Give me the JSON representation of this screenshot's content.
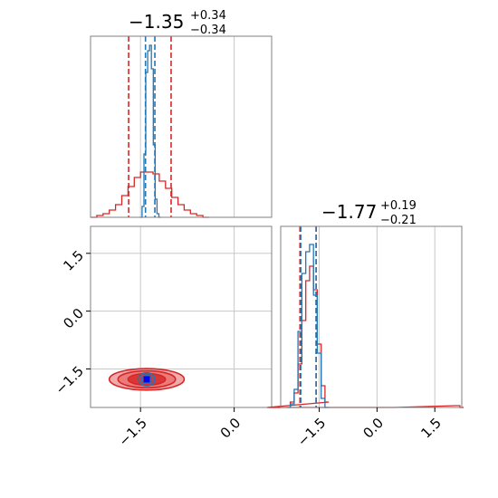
{
  "chart_data": {
    "type": "corner",
    "colors": {
      "red": "#d62728",
      "blue": "#1f77b4",
      "marker": "#0000ff",
      "grid": "#c8c8c8"
    },
    "panels": {
      "hist_x": {
        "title": {
          "main": "−1.35",
          "sup": "+0.34",
          "sub": "−0.34"
        },
        "xlim": [
          -2.3,
          0.6
        ],
        "red_quantiles": [
          -1.69,
          -1.01
        ],
        "blue_quantiles": [
          -1.42,
          -1.27
        ],
        "red_hist": {
          "x": [
            -2.25,
            -2.15,
            -2.05,
            -1.95,
            -1.85,
            -1.75,
            -1.65,
            -1.55,
            -1.45,
            -1.35,
            -1.25,
            -1.15,
            -1.05,
            -0.95,
            -0.85,
            -0.75,
            -0.65,
            -0.55,
            -0.45
          ],
          "y": [
            0,
            0.01,
            0.02,
            0.04,
            0.07,
            0.12,
            0.17,
            0.22,
            0.25,
            0.25,
            0.24,
            0.2,
            0.16,
            0.11,
            0.07,
            0.04,
            0.02,
            0.01,
            0
          ]
        },
        "blue_hist": {
          "x": [
            -1.49,
            -1.46,
            -1.43,
            -1.4,
            -1.37,
            -1.34,
            -1.31,
            -1.28,
            -1.25,
            -1.22,
            -1.19
          ],
          "y": [
            0,
            0.06,
            0.35,
            0.8,
            0.92,
            0.95,
            0.82,
            0.4,
            0.1,
            0.02,
            0
          ]
        }
      },
      "scatter_2d": {
        "xlim": [
          -2.3,
          0.6
        ],
        "ylim": [
          -2.5,
          2.2
        ],
        "xticks": [
          -1.5,
          0.0
        ],
        "yticks": [
          -1.5,
          0.0,
          1.5
        ],
        "xtick_labels": [
          "−1.5",
          "0.0"
        ],
        "ytick_labels": [
          "−1.5",
          "0.0",
          "1.5"
        ],
        "center": [
          -1.4,
          -1.77
        ],
        "red_contours": [
          {
            "rx": 0.6,
            "ry": 0.28,
            "fill": "#f1aaaa"
          },
          {
            "rx": 0.46,
            "ry": 0.22,
            "fill": "#eb7b7b"
          },
          {
            "rx": 0.3,
            "ry": 0.15,
            "fill": "#db3636"
          }
        ],
        "blue_contours": [
          {
            "rx": 0.13,
            "ry": 0.17
          },
          {
            "rx": 0.08,
            "ry": 0.1
          }
        ],
        "marker_size": 0.1
      },
      "hist_y": {
        "title": {
          "main": "−1.77",
          "sup": "+0.19",
          "sub": "−0.21"
        },
        "xlim": [
          -2.5,
          2.2
        ],
        "xticks": [
          -1.5,
          0.0,
          1.5
        ],
        "xtick_labels": [
          "−1.5",
          "0.0",
          "1.5"
        ],
        "red_quantiles": [
          -2.0,
          -1.58
        ],
        "blue_quantiles": [
          -1.98,
          -1.58
        ],
        "red_hist": {
          "x": [
            -2.3,
            -2.2,
            -2.1,
            -2.0,
            -1.9,
            -1.8,
            -1.7,
            -1.6,
            -1.5,
            -1.4,
            -1.3,
            -1.2,
            2.1,
            2.2
          ],
          "y": [
            0,
            0.03,
            0.08,
            0.24,
            0.48,
            0.7,
            0.78,
            0.65,
            0.35,
            0.12,
            0.03,
            0,
            0.01,
            0
          ]
        },
        "blue_hist": {
          "x": [
            -2.3,
            -2.2,
            -2.1,
            -2.0,
            -1.9,
            -1.8,
            -1.7,
            -1.6,
            -1.5,
            -1.4,
            -1.3
          ],
          "y": [
            0,
            0.02,
            0.1,
            0.42,
            0.74,
            0.86,
            0.9,
            0.62,
            0.3,
            0.05,
            0
          ]
        }
      }
    }
  }
}
